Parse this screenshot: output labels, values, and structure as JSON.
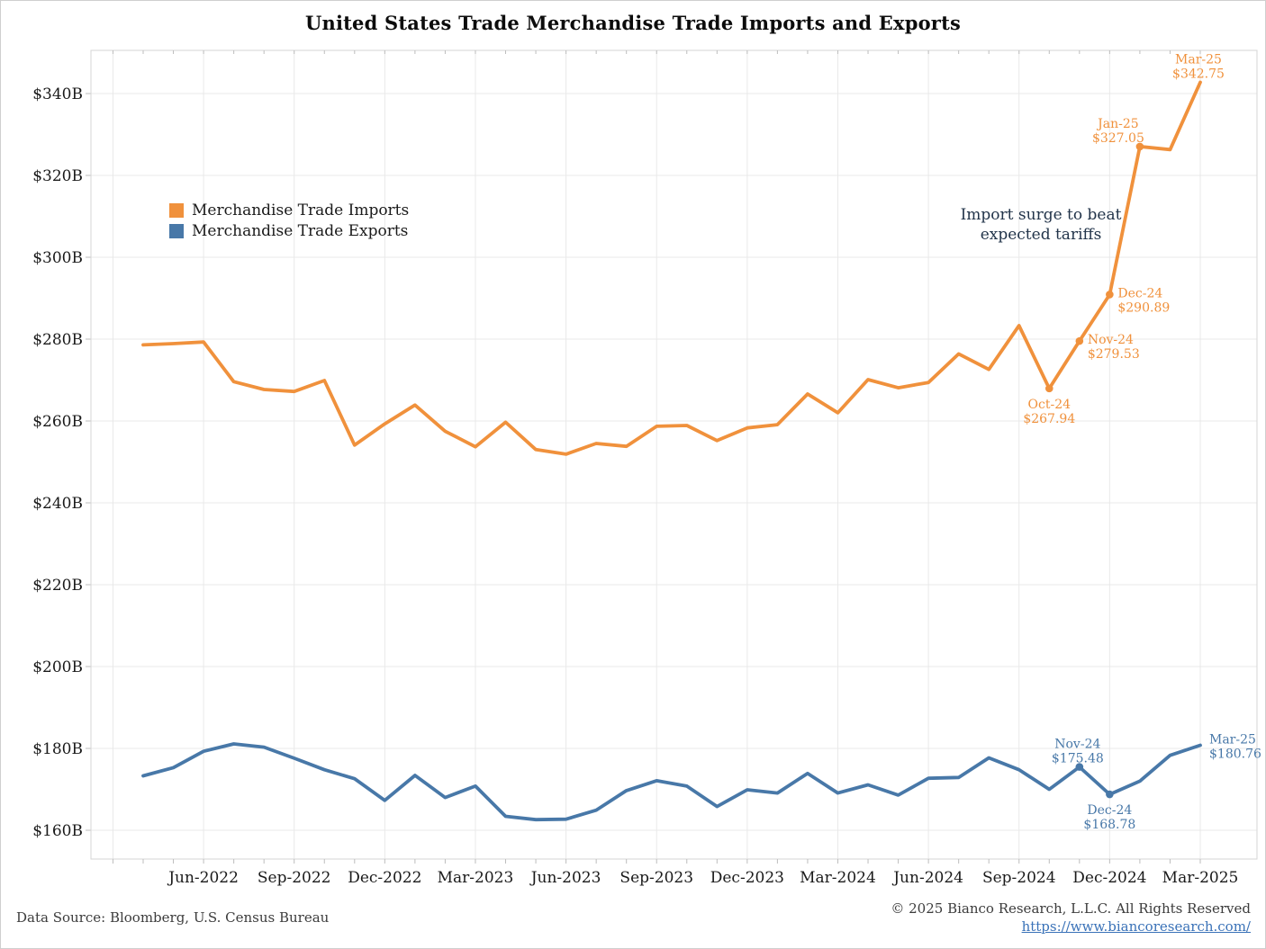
{
  "title": "United States Trade Merchandise Trade Imports and Exports",
  "legend": [
    {
      "label": "Merchandise Trade Imports",
      "color": "#F0913C"
    },
    {
      "label": "Merchandise Trade Exports",
      "color": "#4878A8"
    }
  ],
  "note": {
    "line1": "Import surge to beat",
    "line2": "expected tariffs"
  },
  "footer": {
    "source": "Data Source: Bloomberg, U.S. Census Bureau",
    "copyright": "© 2025 Bianco Research, L.L.C. All Rights Reserved",
    "link": "https://www.biancoresearch.com/"
  },
  "chart_data": {
    "type": "line",
    "title": "United States Trade Merchandise Trade Imports and Exports",
    "unit": "billions USD",
    "grid": true,
    "legend_position": "upper-left-inside",
    "x": [
      "Apr-2022",
      "May-2022",
      "Jun-2022",
      "Jul-2022",
      "Aug-2022",
      "Sep-2022",
      "Oct-2022",
      "Nov-2022",
      "Dec-2022",
      "Jan-2023",
      "Feb-2023",
      "Mar-2023",
      "Apr-2023",
      "May-2023",
      "Jun-2023",
      "Jul-2023",
      "Aug-2023",
      "Sep-2023",
      "Oct-2023",
      "Nov-2023",
      "Dec-2023",
      "Jan-2024",
      "Feb-2024",
      "Mar-2024",
      "Apr-2024",
      "May-2024",
      "Jun-2024",
      "Jul-2024",
      "Aug-2024",
      "Sep-2024",
      "Oct-2024",
      "Nov-2024",
      "Dec-2024",
      "Jan-2025",
      "Feb-2025",
      "Mar-2025"
    ],
    "series": [
      {
        "name": "Merchandise Trade Imports",
        "color": "#F0913C",
        "values": [
          278.6,
          278.9,
          279.3,
          269.6,
          267.7,
          267.2,
          269.9,
          254.1,
          259.3,
          263.9,
          257.5,
          253.7,
          259.7,
          253.0,
          251.9,
          254.5,
          253.8,
          258.7,
          258.9,
          255.2,
          258.3,
          259.1,
          266.6,
          262.0,
          270.1,
          268.1,
          269.4,
          276.4,
          272.6,
          283.3,
          267.94,
          279.53,
          290.89,
          327.05,
          326.3,
          342.75
        ]
      },
      {
        "name": "Merchandise Trade Exports",
        "color": "#4878A8",
        "values": [
          173.3,
          175.3,
          179.3,
          181.1,
          180.3,
          177.6,
          174.8,
          172.6,
          167.3,
          173.4,
          168.0,
          170.8,
          163.4,
          162.6,
          162.7,
          164.9,
          169.7,
          172.1,
          170.8,
          165.8,
          169.9,
          169.1,
          173.9,
          169.1,
          171.1,
          168.6,
          172.7,
          172.9,
          177.7,
          174.8,
          170.0,
          175.48,
          168.78,
          172.0,
          178.3,
          180.76
        ]
      }
    ],
    "ylim": [
      153,
      350
    ],
    "y_ticks": [
      340,
      320,
      300,
      280,
      260,
      240,
      220,
      200,
      180,
      160
    ],
    "y_tick_labels": [
      "$340B",
      "$320B",
      "$300B",
      "$280B",
      "$260B",
      "$240B",
      "$220B",
      "$200B",
      "$180B",
      "$160B"
    ],
    "x_ticks": [
      {
        "i": 2,
        "label": "Jun-2022"
      },
      {
        "i": 5,
        "label": "Sep-2022"
      },
      {
        "i": 8,
        "label": "Dec-2022"
      },
      {
        "i": 11,
        "label": "Mar-2023"
      },
      {
        "i": 14,
        "label": "Jun-2023"
      },
      {
        "i": 17,
        "label": "Sep-2023"
      },
      {
        "i": 20,
        "label": "Dec-2023"
      },
      {
        "i": 23,
        "label": "Mar-2024"
      },
      {
        "i": 26,
        "label": "Jun-2024"
      },
      {
        "i": 29,
        "label": "Sep-2024"
      },
      {
        "i": 32,
        "label": "Dec-2024"
      },
      {
        "i": 35,
        "label": "Mar-2025"
      }
    ],
    "x_gridline_indices": [
      -1,
      2,
      5,
      8,
      11,
      14,
      17,
      20,
      23,
      26,
      29,
      32,
      35
    ],
    "annotations": [
      {
        "series": 0,
        "i": 30,
        "line1": "Oct-24",
        "line2": "$267.94",
        "placement": "below",
        "dot": true
      },
      {
        "series": 0,
        "i": 31,
        "line1": "Nov-24",
        "line2": "$279.53",
        "placement": "right",
        "dot": true
      },
      {
        "series": 0,
        "i": 32,
        "line1": "Dec-24",
        "line2": "$290.89",
        "placement": "right",
        "dot": true
      },
      {
        "series": 0,
        "i": 33,
        "line1": "Jan-25",
        "line2": "$327.05",
        "placement": "above-left",
        "dot": true
      },
      {
        "series": 0,
        "i": 35,
        "line1": "Mar-25",
        "line2": "$342.75",
        "placement": "above",
        "dot": false
      },
      {
        "series": 1,
        "i": 31,
        "line1": "Nov-24",
        "line2": "$175.48",
        "placement": "above",
        "dot": true
      },
      {
        "series": 1,
        "i": 32,
        "line1": "Dec-24",
        "line2": "$168.78",
        "placement": "below",
        "dot": true
      },
      {
        "series": 1,
        "i": 35,
        "line1": "Mar-25",
        "line2": "$180.76",
        "placement": "right-up",
        "dot": false
      }
    ],
    "colors": {
      "grid": "#E9E9E9",
      "border": "#D6D6D6",
      "tick": "#BDBDBD",
      "axis_label": "#1A1A1A"
    }
  }
}
